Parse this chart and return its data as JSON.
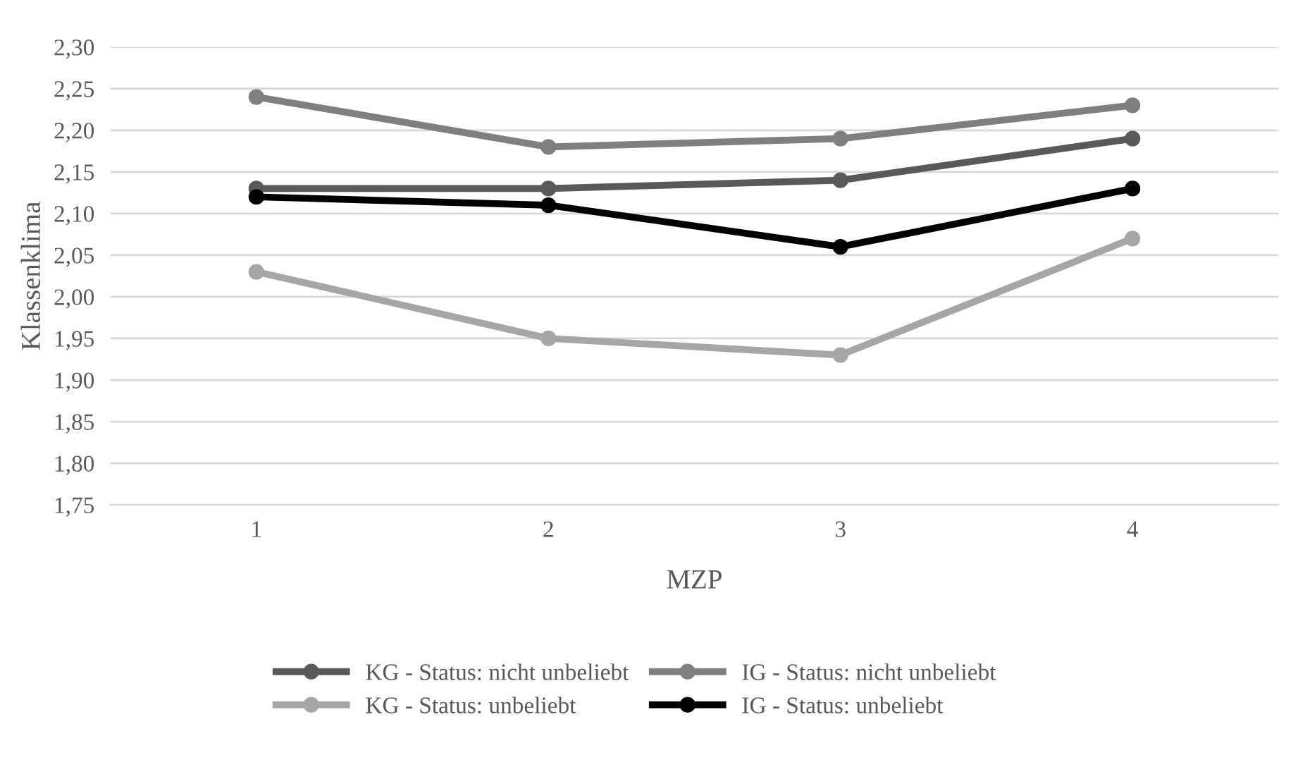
{
  "chart_data": {
    "type": "line",
    "xlabel": "MZP",
    "ylabel": "Klassenklima",
    "categories": [
      "1",
      "2",
      "3",
      "4"
    ],
    "series": [
      {
        "name": "KG - Status: nicht unbeliebt",
        "color": "#595959",
        "values": [
          2.13,
          2.13,
          2.14,
          2.19
        ]
      },
      {
        "name": "KG - Status: unbeliebt",
        "color": "#a6a6a6",
        "values": [
          2.03,
          1.95,
          1.93,
          2.07
        ]
      },
      {
        "name": "IG - Status: nicht unbeliebt",
        "color": "#7f7f7f",
        "values": [
          2.24,
          2.18,
          2.19,
          2.23
        ]
      },
      {
        "name": "IG - Status: unbeliebt",
        "color": "#000000",
        "values": [
          2.12,
          2.11,
          2.06,
          2.13
        ]
      }
    ],
    "ylim": [
      1.75,
      2.3
    ],
    "yticks": [
      {
        "value": 1.75,
        "label": "1,75"
      },
      {
        "value": 1.8,
        "label": "1,80"
      },
      {
        "value": 1.85,
        "label": "1,85"
      },
      {
        "value": 1.9,
        "label": "1,90"
      },
      {
        "value": 1.95,
        "label": "1,95"
      },
      {
        "value": 2.0,
        "label": "2,00"
      },
      {
        "value": 2.05,
        "label": "2,05"
      },
      {
        "value": 2.1,
        "label": "2,10"
      },
      {
        "value": 2.15,
        "label": "2,15"
      },
      {
        "value": 2.2,
        "label": "2,20"
      },
      {
        "value": 2.25,
        "label": "2,25"
      },
      {
        "value": 2.3,
        "label": "2,30"
      }
    ],
    "grid": "y",
    "legend": "bottom",
    "marker": "circle",
    "line_style": "solid"
  }
}
